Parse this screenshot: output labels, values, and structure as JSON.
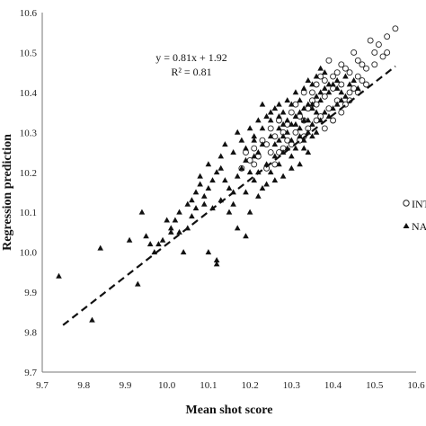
{
  "chart_data": {
    "type": "scatter",
    "xlabel": "Mean shot score",
    "ylabel": "Regression prediction",
    "xlim": [
      9.7,
      10.6
    ],
    "ylim": [
      9.7,
      10.6
    ],
    "x_ticks": [
      "9.7",
      "9.8",
      "9.9",
      "10.0",
      "10.1",
      "10.2",
      "10.3",
      "10.4",
      "10.5",
      "10.6"
    ],
    "y_ticks": [
      "9.7",
      "9.8",
      "9.9",
      "10.0",
      "10.1",
      "10.2",
      "10.3",
      "10.4",
      "10.5",
      "10.6"
    ],
    "grid": false,
    "legend_placement": "right",
    "annotations": {
      "equation": "y = 0.81x + 1.92",
      "r_squared": "R² = 0.81"
    },
    "trendline": {
      "slope": 0.81,
      "intercept": 1.92,
      "x_range": [
        9.75,
        10.55
      ],
      "style": "dashed"
    },
    "series": [
      {
        "name": "INT",
        "marker": "circle-open",
        "points": [
          [
            10.55,
            10.56
          ],
          [
            10.53,
            10.54
          ],
          [
            10.51,
            10.52
          ],
          [
            10.49,
            10.53
          ],
          [
            10.52,
            10.49
          ],
          [
            10.47,
            10.47
          ],
          [
            10.45,
            10.5
          ],
          [
            10.43,
            10.46
          ],
          [
            10.46,
            10.44
          ],
          [
            10.41,
            10.45
          ],
          [
            10.39,
            10.48
          ],
          [
            10.42,
            10.42
          ],
          [
            10.44,
            10.4
          ],
          [
            10.48,
            10.46
          ],
          [
            10.5,
            10.47
          ],
          [
            10.37,
            10.44
          ],
          [
            10.4,
            10.41
          ],
          [
            10.38,
            10.39
          ],
          [
            10.36,
            10.42
          ],
          [
            10.35,
            10.38
          ],
          [
            10.33,
            10.4
          ],
          [
            10.34,
            10.36
          ],
          [
            10.31,
            10.37
          ],
          [
            10.32,
            10.34
          ],
          [
            10.3,
            10.35
          ],
          [
            10.29,
            10.32
          ],
          [
            10.27,
            10.33
          ],
          [
            10.28,
            10.3
          ],
          [
            10.26,
            10.29
          ],
          [
            10.25,
            10.31
          ],
          [
            10.24,
            10.27
          ],
          [
            10.23,
            10.28
          ],
          [
            10.21,
            10.26
          ],
          [
            10.22,
            10.24
          ],
          [
            10.2,
            10.23
          ],
          [
            10.19,
            10.25
          ],
          [
            10.41,
            10.38
          ],
          [
            10.39,
            10.36
          ],
          [
            10.37,
            10.34
          ],
          [
            10.43,
            10.37
          ],
          [
            10.45,
            10.41
          ],
          [
            10.47,
            10.43
          ],
          [
            10.36,
            10.33
          ],
          [
            10.34,
            10.31
          ],
          [
            10.33,
            10.29
          ],
          [
            10.31,
            10.3
          ],
          [
            10.42,
            10.35
          ],
          [
            10.4,
            10.33
          ],
          [
            10.38,
            10.31
          ],
          [
            10.44,
            10.38
          ],
          [
            10.46,
            10.4
          ],
          [
            10.48,
            10.42
          ],
          [
            10.35,
            10.4
          ],
          [
            10.29,
            10.28
          ],
          [
            10.27,
            10.25
          ],
          [
            10.3,
            10.27
          ],
          [
            10.28,
            10.26
          ],
          [
            10.32,
            10.28
          ],
          [
            10.26,
            10.22
          ],
          [
            10.24,
            10.21
          ],
          [
            10.4,
            10.44
          ],
          [
            10.42,
            10.47
          ],
          [
            10.38,
            10.43
          ],
          [
            10.44,
            10.45
          ],
          [
            10.36,
            10.37
          ],
          [
            10.5,
            10.5
          ],
          [
            10.53,
            10.5
          ],
          [
            10.46,
            10.48
          ],
          [
            10.21,
            10.22
          ],
          [
            10.18,
            10.21
          ],
          [
            10.25,
            10.25
          ],
          [
            10.33,
            10.33
          ]
        ]
      },
      {
        "name": "NAT",
        "marker": "triangle-filled",
        "points": [
          [
            9.74,
            9.94
          ],
          [
            9.82,
            9.83
          ],
          [
            9.84,
            10.01
          ],
          [
            9.91,
            10.03
          ],
          [
            9.93,
            9.92
          ],
          [
            9.94,
            10.1
          ],
          [
            9.96,
            10.02
          ],
          [
            9.98,
            10.02
          ],
          [
            9.99,
            10.03
          ],
          [
            10.01,
            10.06
          ],
          [
            10.02,
            10.08
          ],
          [
            10.03,
            10.1
          ],
          [
            10.05,
            10.12
          ],
          [
            10.07,
            10.15
          ],
          [
            10.08,
            10.17
          ],
          [
            10.1,
            10.22
          ],
          [
            10.12,
            10.2
          ],
          [
            10.14,
            10.18
          ],
          [
            10.13,
            10.24
          ],
          [
            10.15,
            10.16
          ],
          [
            10.16,
            10.15
          ],
          [
            10.17,
            10.19
          ],
          [
            10.18,
            10.21
          ],
          [
            10.19,
            10.23
          ],
          [
            10.2,
            10.2
          ],
          [
            10.21,
            10.18
          ],
          [
            10.22,
            10.25
          ],
          [
            10.23,
            10.27
          ],
          [
            10.24,
            10.22
          ],
          [
            10.25,
            10.29
          ],
          [
            10.26,
            10.27
          ],
          [
            10.27,
            10.31
          ],
          [
            10.28,
            10.29
          ],
          [
            10.29,
            10.33
          ],
          [
            10.3,
            10.28
          ],
          [
            10.31,
            10.32
          ],
          [
            10.32,
            10.35
          ],
          [
            10.33,
            10.33
          ],
          [
            10.34,
            10.37
          ],
          [
            10.35,
            10.36
          ],
          [
            10.36,
            10.39
          ],
          [
            10.37,
            10.38
          ],
          [
            10.38,
            10.41
          ],
          [
            10.39,
            10.4
          ],
          [
            10.4,
            10.42
          ],
          [
            10.41,
            10.43
          ],
          [
            10.42,
            10.4
          ],
          [
            10.43,
            10.39
          ],
          [
            10.12,
            9.97
          ],
          [
            10.12,
            9.98
          ],
          [
            10.1,
            10.0
          ],
          [
            10.04,
            10.0
          ],
          [
            10.01,
            10.05
          ],
          [
            9.97,
            10.0
          ],
          [
            10.06,
            10.09
          ],
          [
            10.09,
            10.12
          ],
          [
            10.11,
            10.11
          ],
          [
            10.13,
            10.13
          ],
          [
            10.15,
            10.1
          ],
          [
            10.17,
            10.06
          ],
          [
            10.19,
            10.04
          ],
          [
            10.2,
            10.1
          ],
          [
            10.22,
            10.14
          ],
          [
            10.23,
            10.16
          ],
          [
            10.25,
            10.2
          ],
          [
            10.26,
            10.24
          ],
          [
            10.27,
            10.22
          ],
          [
            10.28,
            10.25
          ],
          [
            10.29,
            10.26
          ],
          [
            10.3,
            10.24
          ],
          [
            10.31,
            10.26
          ],
          [
            10.32,
            10.29
          ],
          [
            10.33,
            10.26
          ],
          [
            10.34,
            10.3
          ],
          [
            10.35,
            10.32
          ],
          [
            10.36,
            10.3
          ],
          [
            10.37,
            10.33
          ],
          [
            10.38,
            10.35
          ],
          [
            10.39,
            10.34
          ],
          [
            10.4,
            10.36
          ],
          [
            10.41,
            10.37
          ],
          [
            10.42,
            10.38
          ],
          [
            10.2,
            10.31
          ],
          [
            10.22,
            10.33
          ],
          [
            10.24,
            10.34
          ],
          [
            10.26,
            10.36
          ],
          [
            10.27,
            10.37
          ],
          [
            10.28,
            10.35
          ],
          [
            10.29,
            10.38
          ],
          [
            10.3,
            10.37
          ],
          [
            10.31,
            10.4
          ],
          [
            10.32,
            10.38
          ],
          [
            10.33,
            10.41
          ],
          [
            10.34,
            10.43
          ],
          [
            10.35,
            10.42
          ],
          [
            10.36,
            10.44
          ],
          [
            10.37,
            10.46
          ],
          [
            10.38,
            10.45
          ],
          [
            10.18,
            10.28
          ],
          [
            10.16,
            10.25
          ],
          [
            10.14,
            10.27
          ],
          [
            10.13,
            10.21
          ],
          [
            10.11,
            10.18
          ],
          [
            10.1,
            10.16
          ],
          [
            10.09,
            10.14
          ],
          [
            10.08,
            10.19
          ],
          [
            10.07,
            10.11
          ],
          [
            10.06,
            10.13
          ],
          [
            10.05,
            10.06
          ],
          [
            10.03,
            10.05
          ],
          [
            10.0,
            10.08
          ],
          [
            9.95,
            10.04
          ],
          [
            10.17,
            10.3
          ],
          [
            10.21,
            10.28
          ],
          [
            10.23,
            10.31
          ],
          [
            10.25,
            10.33
          ],
          [
            10.27,
            10.28
          ],
          [
            10.29,
            10.3
          ],
          [
            10.31,
            10.34
          ],
          [
            10.33,
            10.36
          ],
          [
            10.35,
            10.37
          ],
          [
            10.37,
            10.4
          ],
          [
            10.39,
            10.42
          ],
          [
            10.41,
            10.41
          ],
          [
            10.43,
            10.44
          ],
          [
            10.44,
            10.42
          ],
          [
            10.45,
            10.43
          ],
          [
            10.46,
            10.41
          ],
          [
            10.3,
            10.21
          ],
          [
            10.32,
            10.22
          ],
          [
            10.34,
            10.25
          ],
          [
            10.28,
            10.19
          ],
          [
            10.26,
            10.18
          ],
          [
            10.24,
            10.17
          ],
          [
            10.22,
            10.2
          ],
          [
            10.21,
            10.24
          ],
          [
            10.19,
            10.15
          ],
          [
            10.16,
            10.12
          ],
          [
            10.3,
            10.32
          ],
          [
            10.32,
            10.31
          ],
          [
            10.34,
            10.33
          ],
          [
            10.36,
            10.35
          ],
          [
            10.35,
            10.29
          ],
          [
            10.33,
            10.28
          ],
          [
            10.28,
            10.32
          ],
          [
            10.27,
            10.34
          ],
          [
            10.25,
            10.35
          ],
          [
            10.23,
            10.37
          ],
          [
            10.21,
            10.29
          ],
          [
            10.19,
            10.26
          ]
        ]
      }
    ]
  }
}
